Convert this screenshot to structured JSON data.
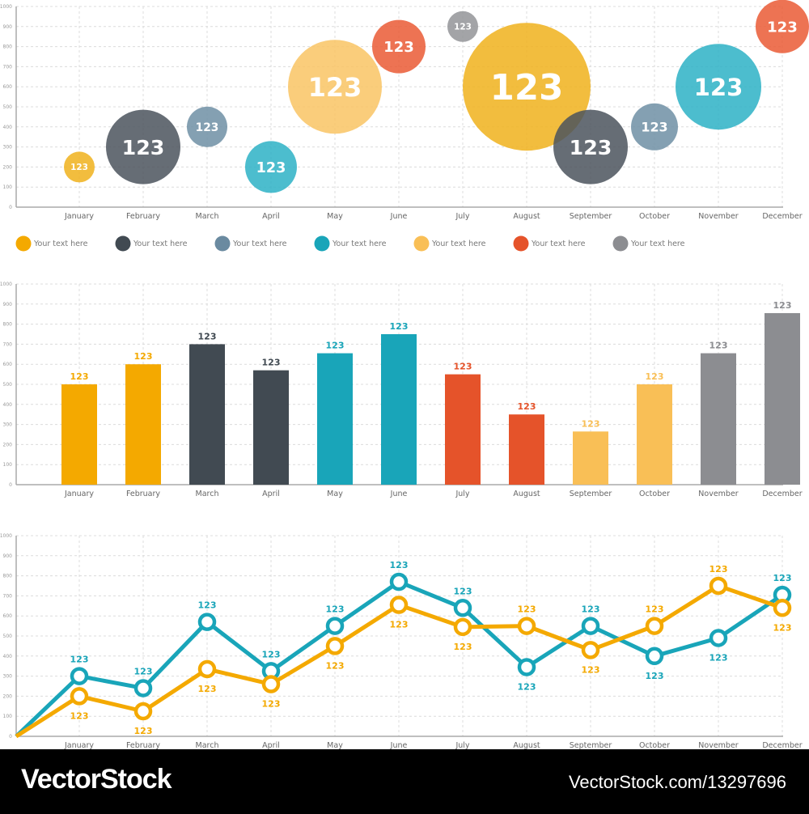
{
  "chart_data": [
    {
      "type": "bubble",
      "categories": [
        "January",
        "February",
        "March",
        "April",
        "May",
        "June",
        "July",
        "August",
        "September",
        "October",
        "November",
        "December"
      ],
      "values": [
        200,
        300,
        400,
        200,
        600,
        800,
        900,
        600,
        300,
        400,
        600,
        900
      ],
      "bubble_sizes": [
        19,
        46,
        25,
        32,
        58,
        33,
        19,
        79,
        46,
        29,
        53,
        33
      ],
      "labels": [
        "123",
        "123",
        "123",
        "123",
        "123",
        "123",
        "123",
        "123",
        "123",
        "123",
        "123",
        "123"
      ],
      "colors": [
        "#f0b21c",
        "#4b545d",
        "#6f8fa4",
        "#2db1c6",
        "#f9c464",
        "#ea5b35",
        "#939498",
        "#f0b21c",
        "#4b545d",
        "#6f8fa4",
        "#2db1c6",
        "#ea5b35"
      ],
      "ylim": [
        0,
        1000
      ],
      "yticks": [
        0,
        100,
        200,
        300,
        400,
        500,
        600,
        700,
        800,
        900,
        1000
      ],
      "grid": true,
      "legend": {
        "placement": "bottom",
        "items": [
          {
            "label": "Your text here",
            "color": "#f4a900"
          },
          {
            "label": "Your text here",
            "color": "#414a52"
          },
          {
            "label": "Your text here",
            "color": "#6a8aa0"
          },
          {
            "label": "Your text here",
            "color": "#19a5b9"
          },
          {
            "label": "Your text here",
            "color": "#f9bf56"
          },
          {
            "label": "Your text here",
            "color": "#e5532a"
          },
          {
            "label": "Your text here",
            "color": "#8c8d91"
          }
        ]
      }
    },
    {
      "type": "bar",
      "categories": [
        "January",
        "February",
        "March",
        "April",
        "May",
        "June",
        "July",
        "August",
        "September",
        "October",
        "November",
        "December"
      ],
      "values": [
        500,
        600,
        700,
        570,
        655,
        750,
        550,
        350,
        265,
        500,
        655,
        855
      ],
      "labels": [
        "123",
        "123",
        "123",
        "123",
        "123",
        "123",
        "123",
        "123",
        "123",
        "123",
        "123",
        "123"
      ],
      "colors": [
        "#f4a900",
        "#f4a900",
        "#414a52",
        "#414a52",
        "#19a5b9",
        "#19a5b9",
        "#e5532a",
        "#e5532a",
        "#f9bf56",
        "#f9bf56",
        "#8c8d91",
        "#8c8d91"
      ],
      "ylim": [
        0,
        1000
      ],
      "yticks": [
        0,
        100,
        200,
        300,
        400,
        500,
        600,
        700,
        800,
        900,
        1000
      ],
      "grid": true
    },
    {
      "type": "line",
      "categories": [
        "January",
        "February",
        "March",
        "April",
        "May",
        "June",
        "July",
        "August",
        "September",
        "October",
        "November",
        "December"
      ],
      "series": [
        {
          "color": "#19a5b9",
          "start": 0,
          "values": [
            300,
            240,
            570,
            325,
            550,
            770,
            640,
            345,
            550,
            400,
            490,
            705
          ],
          "labels": [
            "123",
            "123",
            "123",
            "123",
            "123",
            "123",
            "123",
            "123",
            "123",
            "123",
            "123",
            "123"
          ]
        },
        {
          "color": "#f4a900",
          "start": 0,
          "values": [
            200,
            125,
            335,
            260,
            450,
            655,
            545,
            550,
            430,
            550,
            750,
            640
          ],
          "labels": [
            "123",
            "123",
            "123",
            "123",
            "123",
            "123",
            "123",
            "123",
            "123",
            "123",
            "123",
            "123"
          ]
        }
      ],
      "ylim": [
        0,
        1000
      ],
      "yticks": [
        0,
        100,
        200,
        300,
        400,
        500,
        600,
        700,
        800,
        900,
        1000
      ],
      "grid": true
    }
  ],
  "footer": {
    "logo": "VectorStock",
    "url": "VectorStock.com/13297696"
  }
}
